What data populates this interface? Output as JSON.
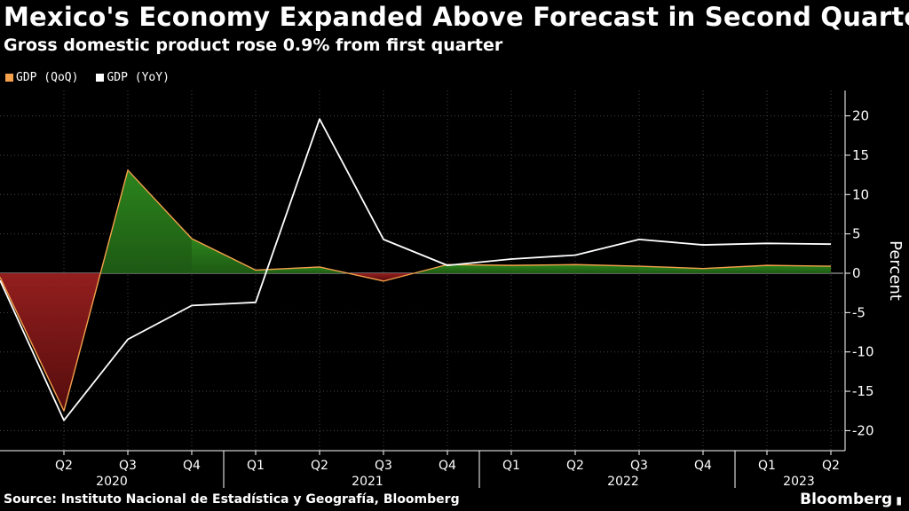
{
  "header": {
    "title": "Mexico's Economy Expanded Above Forecast in Second Quarter",
    "subtitle": "Gross domestic product rose 0.9% from first quarter"
  },
  "footer": {
    "source": "Source: Instituto Nacional de Estadística y Geografía, Bloomberg",
    "brand": "Bloomberg"
  },
  "colors": {
    "qoq": "#f5a04b",
    "yoy": "#ffffff",
    "positive_fill": "#2f7d1f",
    "negative_fill": "#8b1a1a",
    "grid": "#444444"
  },
  "chart_data": {
    "type": "area",
    "title": "Mexico's Economy Expanded Above Forecast in Second Quarter",
    "subtitle": "Gross domestic product rose 0.9% from first quarter",
    "ylabel": "Percent",
    "ylim": [
      -20,
      20
    ],
    "yticks": [
      20,
      15,
      10,
      5,
      0,
      -5,
      -10,
      -15,
      -20
    ],
    "x": [
      "Q1 2020",
      "Q2 2020",
      "Q3 2020",
      "Q4 2020",
      "Q1 2021",
      "Q2 2021",
      "Q3 2021",
      "Q4 2021",
      "Q1 2022",
      "Q2 2022",
      "Q3 2022",
      "Q4 2022",
      "Q1 2023",
      "Q2 2023"
    ],
    "xtick_labels": [
      "",
      "Q2",
      "Q3",
      "Q4",
      "Q1",
      "Q2",
      "Q3",
      "Q4",
      "Q1",
      "Q2",
      "Q3",
      "Q4",
      "Q1",
      "Q2"
    ],
    "years": [
      "2020",
      "2021",
      "2022",
      "2023"
    ],
    "grid": true,
    "legend_position": "top-left",
    "series": [
      {
        "name": "GDP (QoQ)",
        "values": [
          -0.5,
          -17.5,
          13.1,
          4.4,
          0.4,
          0.8,
          -1.0,
          1.1,
          1.0,
          1.1,
          0.9,
          0.6,
          1.0,
          0.9
        ]
      },
      {
        "name": "GDP (YoY)",
        "values": [
          -0.9,
          -18.7,
          -8.4,
          -4.1,
          -3.7,
          19.6,
          4.3,
          1.0,
          1.8,
          2.3,
          4.3,
          3.6,
          3.8,
          3.7
        ]
      }
    ]
  }
}
